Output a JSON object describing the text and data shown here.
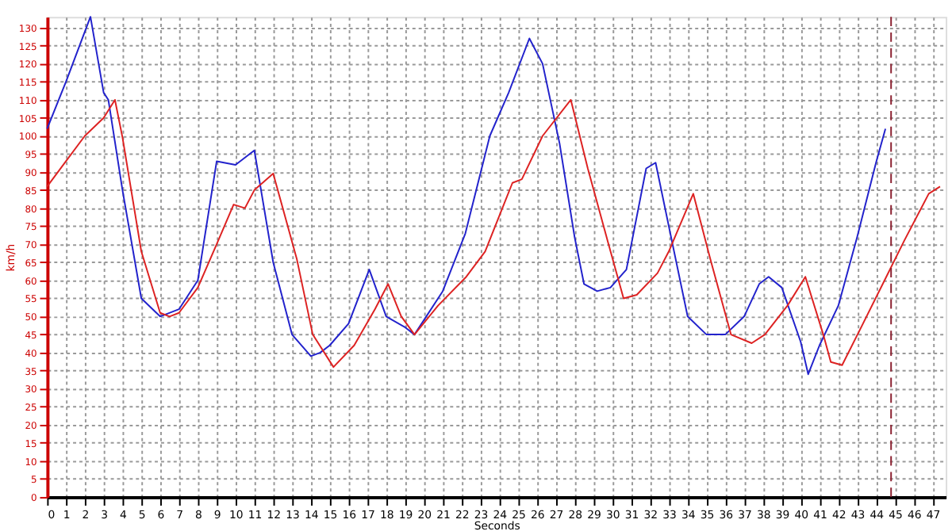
{
  "chart_data": {
    "type": "line",
    "xlabel": "Seconds",
    "ylabel": "km/h",
    "xlim": [
      0,
      47.7
    ],
    "xticks": [
      0,
      1,
      2,
      3,
      4,
      5,
      6,
      7,
      8,
      9,
      10,
      11,
      12,
      13,
      14,
      15,
      16,
      17,
      18,
      19,
      20,
      21,
      22,
      23,
      24,
      25,
      26,
      27,
      28,
      29,
      30,
      31,
      32,
      33,
      34,
      35,
      36,
      37,
      38,
      39,
      40,
      41,
      42,
      43,
      44,
      45,
      46,
      47
    ],
    "ylim": [
      0,
      133
    ],
    "yticks": [
      0,
      5,
      10,
      15,
      20,
      25,
      30,
      35,
      40,
      45,
      50,
      55,
      60,
      65,
      70,
      75,
      80,
      85,
      90,
      95,
      100,
      105,
      110,
      115,
      120,
      125,
      130
    ],
    "grid": true,
    "line_style": "solid",
    "marker": "none",
    "ref_lines": [
      {
        "axis": "x",
        "value": 44.8,
        "label": null,
        "color": "#8b2030",
        "line_style": "dashed"
      }
    ],
    "series": [
      {
        "color": "#2222cc",
        "x": [
          0,
          1,
          2.3,
          3,
          3.25,
          4,
          5,
          6,
          7,
          8,
          9,
          10,
          11,
          12,
          13,
          14,
          14.5,
          15,
          16,
          17.1,
          18,
          19,
          19.5,
          21,
          22.2,
          23.5,
          24.5,
          25.6,
          26.3,
          27.2,
          28,
          28.5,
          29.2,
          29.9,
          30.75,
          31.8,
          32.3,
          33,
          34,
          35,
          36,
          37,
          37.8,
          38.3,
          39,
          40,
          40.4,
          41,
          42,
          43,
          44,
          44.5
        ],
        "values": [
          102,
          115,
          133,
          112,
          110,
          85,
          55,
          50,
          52,
          60,
          93,
          92,
          96,
          65,
          45,
          39,
          40,
          42,
          48,
          63,
          50,
          47,
          45,
          57,
          73,
          100,
          112,
          127,
          120,
          98,
          72,
          59,
          57,
          58,
          63,
          91,
          92.6,
          75,
          50,
          45,
          45,
          50,
          59,
          61,
          58,
          43,
          34,
          42,
          53,
          72,
          92.6,
          102
        ]
      },
      {
        "color": "#dd2222",
        "x": [
          0,
          1,
          2,
          3,
          3.6,
          4,
          5,
          6,
          6.5,
          7,
          8,
          9,
          9.9,
          10.5,
          11,
          12,
          13.25,
          14.1,
          15.2,
          16.3,
          17.4,
          18.1,
          18.8,
          19.5,
          20.75,
          22.25,
          23.25,
          24.7,
          25.2,
          26.3,
          27.8,
          28.7,
          29.75,
          30.6,
          31.3,
          32.4,
          33,
          34.3,
          35.2,
          36.3,
          37.4,
          38.1,
          39.3,
          40.25,
          41.2,
          41.6,
          42.2,
          43.25,
          44.5,
          45.5,
          46.8,
          47.4
        ],
        "values": [
          86,
          93,
          100,
          105,
          110,
          99.6,
          68,
          51,
          50,
          51,
          58,
          70,
          81,
          80,
          85,
          89.6,
          66,
          45,
          36,
          42,
          52,
          59,
          50,
          45,
          53,
          61,
          68,
          87,
          88,
          100,
          110,
          91,
          71,
          55,
          56,
          62,
          68,
          84,
          66,
          45,
          42.6,
          45,
          53,
          61,
          45,
          37.4,
          36.5,
          47.4,
          60.5,
          71,
          84,
          86
        ]
      }
    ]
  }
}
